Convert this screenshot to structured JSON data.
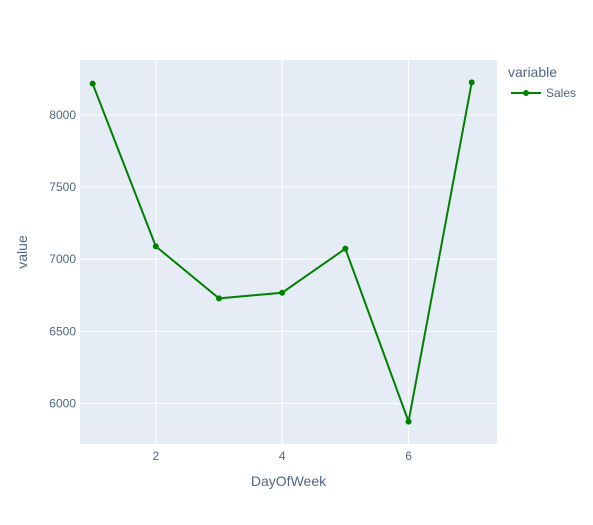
{
  "chart_data": {
    "type": "line",
    "title": "",
    "xlabel": "DayOfWeek",
    "ylabel": "value",
    "xlim": [
      0.8,
      7.4
    ],
    "ylim": [
      5720,
      8380
    ],
    "x_ticks": [
      2,
      4,
      6
    ],
    "y_ticks": [
      6000,
      6500,
      7000,
      7500,
      8000
    ],
    "grid": true,
    "legend": {
      "title": "variable",
      "placement": "top-right"
    },
    "series": [
      {
        "name": "Sales",
        "color": "#008000",
        "x": [
          1,
          2,
          3,
          4,
          5,
          6,
          7
        ],
        "values": [
          8216,
          7089,
          6729,
          6768,
          7073,
          5875,
          8225
        ]
      }
    ]
  }
}
